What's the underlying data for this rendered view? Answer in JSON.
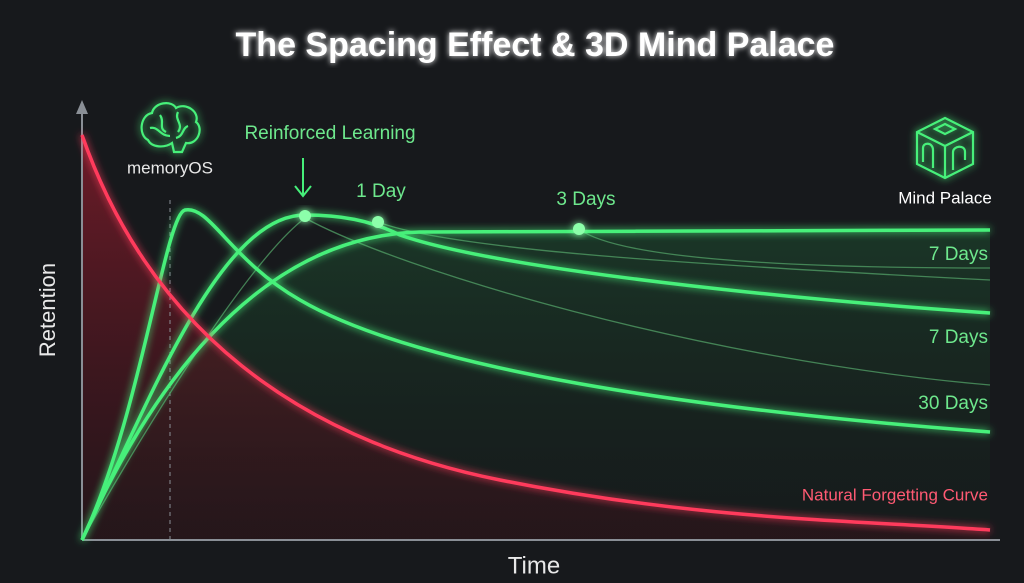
{
  "title": "The Spacing Effect & 3D Mind Palace",
  "labels": {
    "logo": "memoryOS",
    "reinforced": "Reinforced Learning",
    "day1": "1 Day",
    "day3": "3 Days",
    "mind_palace": "Mind Palace",
    "day7_a": "7 Days",
    "day7_b": "7 Days",
    "day30": "30 Days",
    "forgetting": "Natural Forgetting Curve"
  },
  "axes": {
    "y": "Retention",
    "x": "Time"
  }
}
